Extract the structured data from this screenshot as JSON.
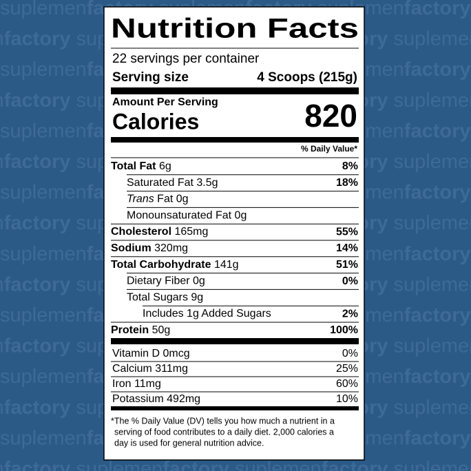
{
  "watermark": {
    "light": "suplemen",
    "bold": "factory"
  },
  "label": {
    "title": "Nutrition Facts",
    "servings": "22 servings per container",
    "serving_size": {
      "label": "Serving size",
      "value": "4 Scoops (215g)"
    },
    "amount_per_serving": "Amount Per Serving",
    "calories": {
      "label": "Calories",
      "value": 820
    },
    "dv_header": "% Daily Value*",
    "nutrients": [
      {
        "name": "Total Fat",
        "amount": "6g",
        "dv": "8%",
        "bold": true,
        "indent": 0
      },
      {
        "name": "Saturated Fat",
        "amount": "3.5g",
        "dv": "18%",
        "bold": false,
        "indent": 1
      },
      {
        "italic": "Trans",
        "name": "Fat",
        "amount": "0g",
        "bold": false,
        "indent": 1
      },
      {
        "name": "Monounsaturated Fat",
        "amount": "0g",
        "bold": false,
        "indent": 1
      },
      {
        "name": "Cholesterol",
        "amount": "165mg",
        "dv": "55%",
        "bold": true,
        "indent": 0
      },
      {
        "name": "Sodium",
        "amount": "320mg",
        "dv": "14%",
        "bold": true,
        "indent": 0
      },
      {
        "name": "Total Carbohydrate",
        "amount": "141g",
        "dv": "51%",
        "bold": true,
        "indent": 0
      },
      {
        "name": "Dietary Fiber",
        "amount": "0g",
        "dv": "0%",
        "bold": false,
        "indent": 1
      },
      {
        "name": "Total Sugars",
        "amount": "9g",
        "bold": false,
        "indent": 1
      },
      {
        "name": "Includes 1g Added Sugars",
        "dv": "2%",
        "bold": false,
        "indent": 2
      },
      {
        "name": "Protein",
        "amount": "50g",
        "dv": "100%",
        "bold": true,
        "indent": 0
      }
    ],
    "vitamins": [
      {
        "name": "Vitamin D",
        "amount": "0mcg",
        "dv": "0%"
      },
      {
        "name": "Calcium",
        "amount": "311mg",
        "dv": "25%"
      },
      {
        "name": "Iron",
        "amount": "11mg",
        "dv": "60%"
      },
      {
        "name": "Potassium",
        "amount": "492mg",
        "dv": "10%"
      }
    ],
    "footnote": [
      "*The % Daily Value (DV) tells you how much a nutrient in a",
      "serving of food contributes to a daily diet. 2,000 calories a",
      "day is used for general nutrition advice."
    ]
  }
}
